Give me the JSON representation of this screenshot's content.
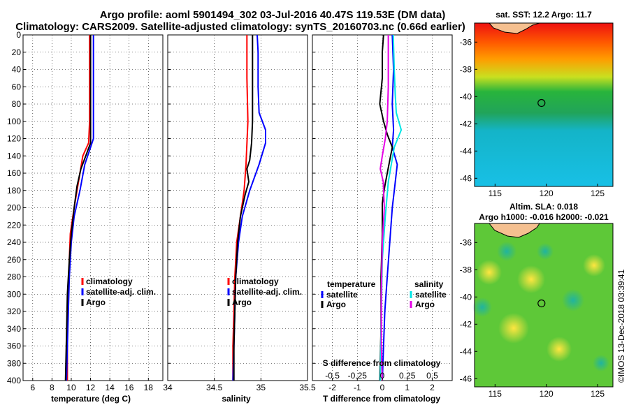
{
  "title_line1": "Argo profile: aoml 5901494_302 03-Jul-2016 40.47S 119.53E (DM data)",
  "title_line2": "Climatology: CARS2009. Satellite-adjusted climatology: synTS_20160703.nc (0.66d earlier)",
  "colors": {
    "climatology": "#ff0000",
    "satellite": "#0000ff",
    "argo": "#000000",
    "salinity_sat": "#00e5e5",
    "salinity_argo": "#e600e6"
  },
  "chart_data": [
    {
      "id": "temperature",
      "type": "line",
      "xlabel": "temperature (deg C)",
      "xlim": [
        5,
        19.5
      ],
      "xticks": [
        "6",
        "8",
        "10",
        "12",
        "14",
        "16",
        "18"
      ],
      "xtick_values": [
        6,
        8,
        10,
        12,
        14,
        16,
        18
      ],
      "ylim": [
        0,
        400
      ],
      "yticks": [
        "0",
        "20",
        "40",
        "60",
        "80",
        "100",
        "120",
        "140",
        "160",
        "180",
        "200",
        "220",
        "240",
        "260",
        "280",
        "300",
        "320",
        "340",
        "360",
        "380",
        "400"
      ],
      "legend": [
        "climatology",
        "satellite-adj. clim.",
        "Argo"
      ],
      "series": [
        {
          "name": "climatology",
          "color_key": "climatology",
          "depth": [
            0,
            50,
            100,
            125,
            140,
            160,
            180,
            200,
            230,
            260,
            300,
            350,
            400
          ],
          "values": [
            11.9,
            11.9,
            11.9,
            11.8,
            11.2,
            10.9,
            10.6,
            10.3,
            9.9,
            9.8,
            9.7,
            9.6,
            9.6
          ]
        },
        {
          "name": "satellite-adj. clim.",
          "color_key": "satellite",
          "depth": [
            0,
            50,
            100,
            120,
            130,
            150,
            180,
            210,
            240,
            280,
            320,
            360,
            400
          ],
          "values": [
            12.3,
            12.3,
            12.3,
            12.3,
            12.0,
            11.4,
            10.9,
            10.3,
            10.0,
            9.8,
            9.7,
            9.6,
            9.5
          ]
        },
        {
          "name": "Argo",
          "color_key": "argo",
          "depth": [
            0,
            50,
            100,
            125,
            140,
            155,
            175,
            200,
            230,
            260,
            300,
            350,
            400
          ],
          "values": [
            12.0,
            12.0,
            12.0,
            12.0,
            11.5,
            11.0,
            10.6,
            10.3,
            10.0,
            9.8,
            9.6,
            9.5,
            9.4
          ]
        }
      ]
    },
    {
      "id": "salinity",
      "type": "line",
      "xlabel": "salinity",
      "xlim": [
        34,
        35.5
      ],
      "xticks": [
        "34",
        "34.5",
        "35",
        "35.5"
      ],
      "xtick_values": [
        34,
        34.5,
        35,
        35.5
      ],
      "ylim": [
        0,
        400
      ],
      "legend": [
        "climatology",
        "satellite-adj. clim.",
        "Argo"
      ],
      "series": [
        {
          "name": "climatology",
          "color_key": "climatology",
          "depth": [
            0,
            50,
            100,
            150,
            180,
            210,
            240,
            280,
            320,
            360,
            400
          ],
          "values": [
            34.85,
            34.85,
            34.86,
            34.84,
            34.82,
            34.78,
            34.74,
            34.72,
            34.71,
            34.7,
            34.7
          ]
        },
        {
          "name": "satellite-adj. clim.",
          "color_key": "satellite",
          "depth": [
            0,
            20,
            60,
            90,
            110,
            125,
            150,
            180,
            210,
            240,
            280,
            320,
            360,
            400
          ],
          "values": [
            34.96,
            34.97,
            34.97,
            34.98,
            35.05,
            35.05,
            34.98,
            34.88,
            34.8,
            34.76,
            34.73,
            34.72,
            34.71,
            34.7
          ]
        },
        {
          "name": "Argo",
          "color_key": "argo",
          "depth": [
            0,
            60,
            100,
            125,
            145,
            155,
            170,
            185,
            210,
            240,
            280,
            320,
            360,
            400
          ],
          "values": [
            34.91,
            34.91,
            34.91,
            34.9,
            34.88,
            34.85,
            34.87,
            34.83,
            34.78,
            34.75,
            34.73,
            34.72,
            34.71,
            34.71
          ]
        }
      ]
    },
    {
      "id": "differences",
      "type": "line",
      "xlabel": "T difference from climatology",
      "xlabel_top": "S difference from climatology",
      "xlim": [
        -2.8,
        2.8
      ],
      "xticks": [
        "-2",
        "-1",
        "0",
        "1",
        "2"
      ],
      "xtick_values": [
        -2,
        -1,
        0,
        1,
        2
      ],
      "xticks_top": [
        "-0.5",
        "-0.25",
        "0",
        "0.25",
        "0.5"
      ],
      "xtick_top_values": [
        -0.5,
        -0.25,
        0,
        0.25,
        0.5
      ],
      "ylim": [
        0,
        400
      ],
      "legend_temperature": {
        "title": "temperature",
        "items": [
          "satellite",
          "Argo"
        ]
      },
      "legend_salinity": {
        "title": "salinity",
        "items": [
          "satellite",
          "Argo"
        ]
      },
      "series": [
        {
          "name": "temperature satellite",
          "color_key": "satellite",
          "depth": [
            0,
            40,
            80,
            110,
            130,
            150,
            175,
            200,
            240,
            280,
            320,
            360,
            400
          ],
          "values": [
            0.4,
            0.45,
            0.4,
            0.45,
            0.4,
            0.6,
            0.5,
            0.4,
            0.3,
            0.2,
            0.1,
            0.05,
            0.0
          ]
        },
        {
          "name": "temperature Argo",
          "color_key": "argo",
          "depth": [
            0,
            20,
            50,
            80,
            100,
            115,
            130,
            145,
            160,
            175,
            195,
            230,
            280,
            340,
            400
          ],
          "values": [
            0.05,
            0.0,
            0.0,
            -0.1,
            0.05,
            0.2,
            0.4,
            0.3,
            0.2,
            0.1,
            0.0,
            0.0,
            -0.05,
            -0.05,
            -0.1
          ]
        },
        {
          "name": "salinity satellite",
          "color_key": "salinity_sat",
          "depth": [
            0,
            40,
            70,
            90,
            110,
            130,
            170,
            210,
            260,
            320,
            400
          ],
          "values": [
            0.11,
            0.12,
            0.13,
            0.14,
            0.19,
            0.12,
            0.06,
            0.03,
            0.0,
            -0.01,
            -0.02
          ]
        },
        {
          "name": "salinity Argo",
          "color_key": "salinity_argo",
          "depth": [
            0,
            60,
            100,
            120,
            140,
            155,
            170,
            200,
            240,
            300,
            360,
            400
          ],
          "values": [
            0.06,
            0.06,
            0.05,
            0.03,
            0.0,
            -0.02,
            0.01,
            0.02,
            0.0,
            -0.01,
            -0.01,
            0.0
          ]
        }
      ]
    }
  ],
  "map_sst": {
    "title": "sat. SST: 12.2 Argo: 11.7",
    "xticks": [
      "115",
      "120",
      "125"
    ],
    "xtick_values": [
      115,
      120,
      125
    ],
    "yticks": [
      "-36",
      "-38",
      "-40",
      "-42",
      "-44",
      "-46"
    ],
    "ytick_values": [
      -36,
      -38,
      -40,
      -42,
      -44,
      -46
    ],
    "marker": {
      "lon": 119.53,
      "lat": -40.47
    },
    "lon_range": [
      113,
      126.5
    ],
    "lat_range": [
      -46.6,
      -34.6
    ]
  },
  "map_sla": {
    "title1": "Altim. SLA: 0.018",
    "title2": "Argo h1000: -0.016 h2000: -0.021",
    "xticks": [
      "115",
      "120",
      "125"
    ],
    "xtick_values": [
      115,
      120,
      125
    ],
    "yticks": [
      "-36",
      "-38",
      "-40",
      "-42",
      "-44",
      "-46"
    ],
    "ytick_values": [
      -36,
      -38,
      -40,
      -42,
      -44,
      -46
    ],
    "marker": {
      "lon": 119.53,
      "lat": -40.47
    },
    "lon_range": [
      113,
      126.5
    ],
    "lat_range": [
      -46.6,
      -34.6
    ]
  },
  "credit": "©IMOS 13-Dec-2018 03:39:41"
}
